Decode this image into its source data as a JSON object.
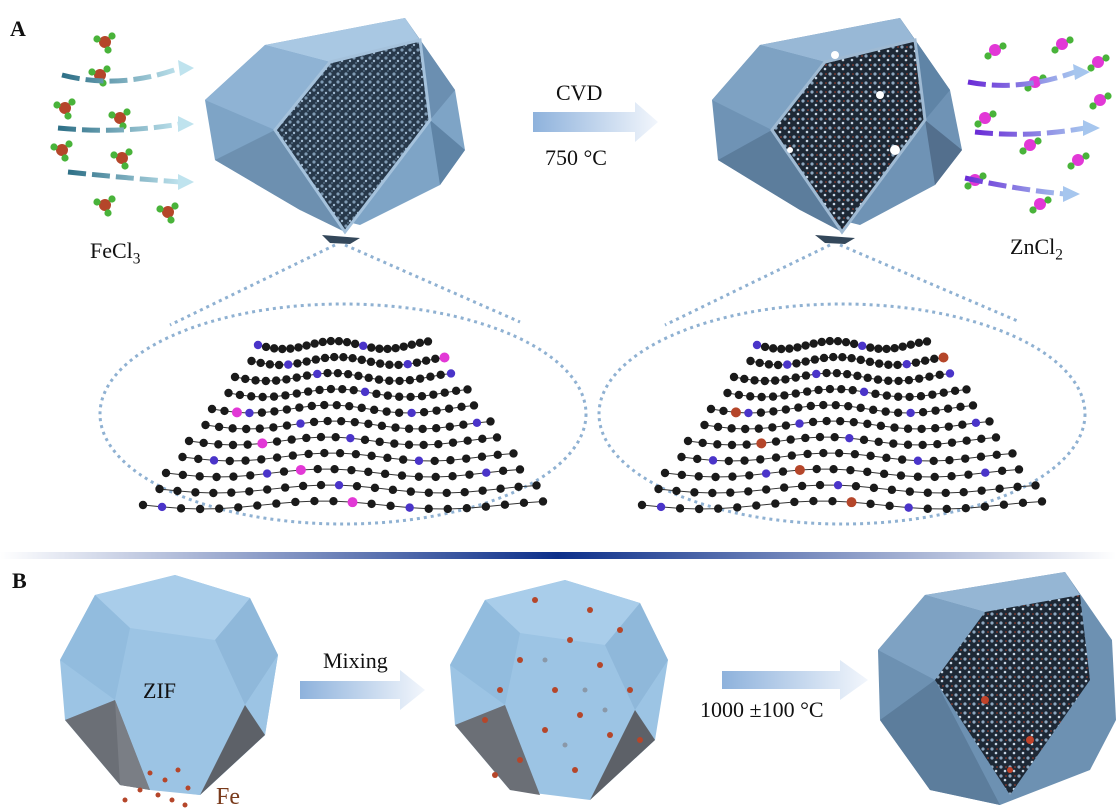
{
  "panels": {
    "a": "A",
    "b": "B"
  },
  "panel_a": {
    "precursor": "FeCl",
    "precursor_sub": "3",
    "arrow_top": "CVD",
    "arrow_bottom": "750 °C",
    "product": "ZnCl",
    "product_sub": "2"
  },
  "panel_b": {
    "zif": "ZIF",
    "fe": "Fe",
    "mixing": "Mixing",
    "temperature": "1000 ±100 °C"
  },
  "colors": {
    "crystal": "#9cc4e4",
    "crystal_dark": "#5f88ab",
    "graphene": "#1a1a1a",
    "nitrogen": "#4a34c9",
    "zinc": "#e238d6",
    "iron": "#b5462a",
    "chlorine": "#49b33a",
    "divider": "#0c2f8a"
  },
  "icons": [
    "fecl3-molecule-icon",
    "zncl2-molecule-icon",
    "process-arrow-icon"
  ]
}
